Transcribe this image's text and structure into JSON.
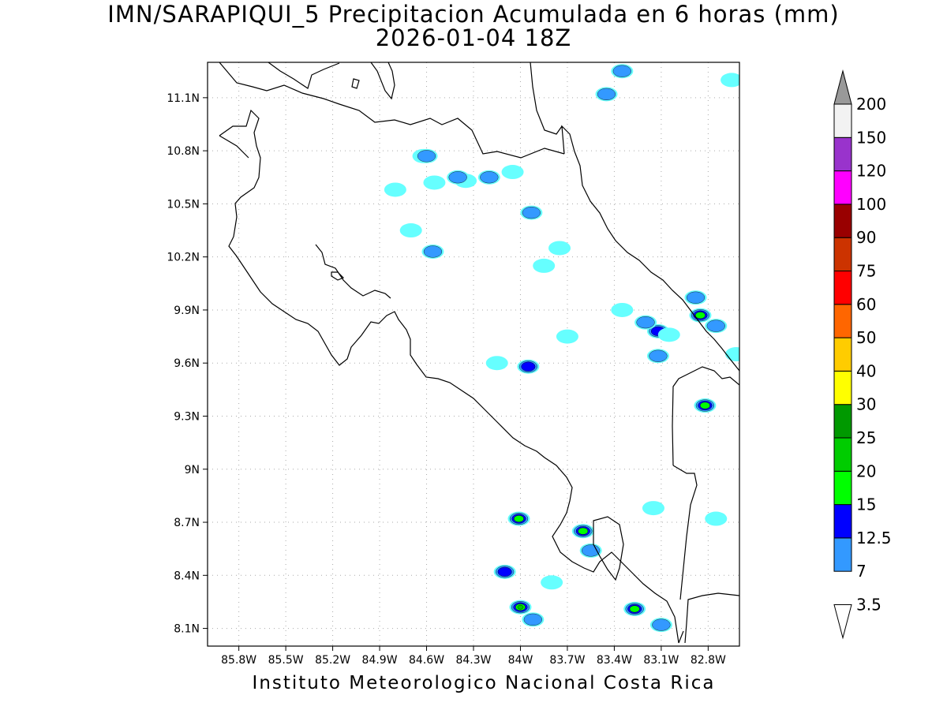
{
  "title": "IMN/SARAPIQUI_5 Precipitacion Acumulada en 6 horas (mm)",
  "subtitle": "2026-01-04 18Z",
  "credit": "Instituto Meteorologico Nacional Costa Rica",
  "map": {
    "lon_range": [
      -86.0,
      -82.6
    ],
    "lat_range": [
      8.0,
      11.3
    ],
    "lon_ticks": [
      "85.8W",
      "85.5W",
      "85.2W",
      "84.9W",
      "84.6W",
      "84.3W",
      "84W",
      "83.7W",
      "83.4W",
      "83.1W",
      "82.8W"
    ],
    "lat_ticks": [
      "11.1N",
      "10.8N",
      "10.5N",
      "10.2N",
      "9.9N",
      "9.6N",
      "9.3N",
      "9N",
      "8.7N",
      "8.4N",
      "8.1N"
    ],
    "grid": true
  },
  "colorbar": {
    "labels": [
      "3.5",
      "7",
      "12.5",
      "15",
      "20",
      "25",
      "30",
      "40",
      "50",
      "60",
      "75",
      "90",
      "100",
      "120",
      "150",
      "200"
    ],
    "colors": [
      "#66ffff",
      "#3399ff",
      "#0000ff",
      "#00ff00",
      "#00cc00",
      "#009900",
      "#ffff00",
      "#ffcc00",
      "#ff6600",
      "#ff0000",
      "#cc3300",
      "#990000",
      "#ff00ff",
      "#9933cc",
      "#f2f2f2",
      "#999999"
    ]
  },
  "precip_cells": [
    {
      "lon": -84.35,
      "lat": 10.63,
      "level": 0
    },
    {
      "lon": -84.05,
      "lat": 10.68,
      "level": 0
    },
    {
      "lon": -84.55,
      "lat": 10.62,
      "level": 0
    },
    {
      "lon": -84.8,
      "lat": 10.58,
      "level": 0
    },
    {
      "lon": -84.62,
      "lat": 10.77,
      "level": 0
    },
    {
      "lon": -84.2,
      "lat": 10.65,
      "level": 1
    },
    {
      "lon": -84.4,
      "lat": 10.65,
      "level": 1
    },
    {
      "lon": -84.6,
      "lat": 10.77,
      "level": 1
    },
    {
      "lon": -83.93,
      "lat": 10.45,
      "level": 1
    },
    {
      "lon": -84.56,
      "lat": 10.23,
      "level": 1
    },
    {
      "lon": -83.45,
      "lat": 11.12,
      "level": 1
    },
    {
      "lon": -83.35,
      "lat": 11.25,
      "level": 1
    },
    {
      "lon": -83.12,
      "lat": 9.78,
      "level": 2
    },
    {
      "lon": -83.2,
      "lat": 9.83,
      "level": 1
    },
    {
      "lon": -82.85,
      "lat": 9.87,
      "level": 3
    },
    {
      "lon": -82.88,
      "lat": 9.97,
      "level": 1
    },
    {
      "lon": -82.75,
      "lat": 9.81,
      "level": 1
    },
    {
      "lon": -82.82,
      "lat": 9.36,
      "level": 3
    },
    {
      "lon": -84.01,
      "lat": 8.72,
      "level": 3
    },
    {
      "lon": -83.6,
      "lat": 8.65,
      "level": 3
    },
    {
      "lon": -84.0,
      "lat": 8.22,
      "level": 4
    },
    {
      "lon": -83.27,
      "lat": 8.21,
      "level": 3
    },
    {
      "lon": -84.1,
      "lat": 8.42,
      "level": 2
    },
    {
      "lon": -83.12,
      "lat": 9.64,
      "level": 1
    },
    {
      "lon": -83.95,
      "lat": 9.58,
      "level": 2
    },
    {
      "lon": -83.92,
      "lat": 8.15,
      "level": 1
    },
    {
      "lon": -83.55,
      "lat": 8.54,
      "level": 1
    },
    {
      "lon": -83.1,
      "lat": 8.12,
      "level": 1
    },
    {
      "lon": -84.15,
      "lat": 9.6,
      "level": 0
    },
    {
      "lon": -83.7,
      "lat": 9.75,
      "level": 0
    },
    {
      "lon": -83.35,
      "lat": 9.9,
      "level": 0
    },
    {
      "lon": -83.05,
      "lat": 9.76,
      "level": 0
    },
    {
      "lon": -83.8,
      "lat": 8.36,
      "level": 0
    },
    {
      "lon": -83.15,
      "lat": 8.78,
      "level": 0
    },
    {
      "lon": -82.75,
      "lat": 8.72,
      "level": 0
    },
    {
      "lon": -83.75,
      "lat": 10.25,
      "level": 0
    },
    {
      "lon": -83.85,
      "lat": 10.15,
      "level": 0
    },
    {
      "lon": -84.7,
      "lat": 10.35,
      "level": 0
    },
    {
      "lon": -82.62,
      "lat": 9.65,
      "level": 0
    },
    {
      "lon": -82.65,
      "lat": 11.2,
      "level": 0
    }
  ]
}
